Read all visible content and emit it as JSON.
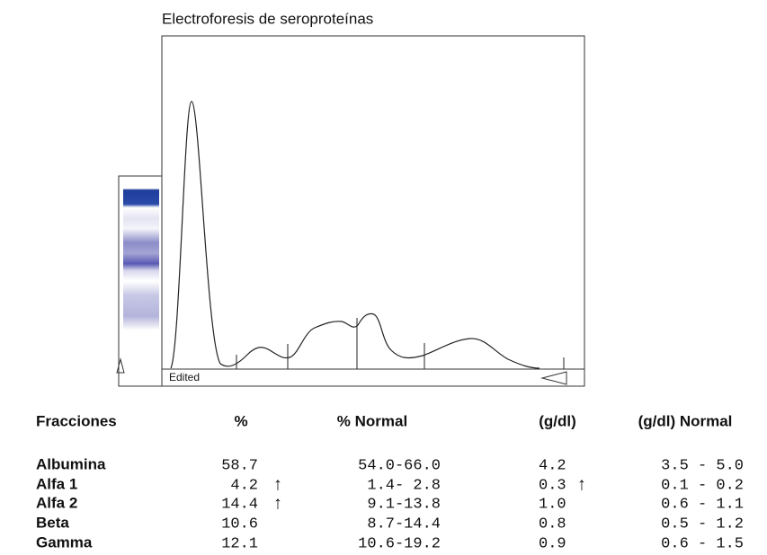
{
  "title": "Electroforesis de seroproteínas",
  "graph_label": "Edited",
  "table": {
    "headers": [
      "Fracciones",
      "%",
      "% Normal",
      "(g/dl)",
      "(g/dl) Normal"
    ],
    "rows": [
      {
        "fraction": "Albumina",
        "percent": "58.7",
        "percent_normal": "54.0-66.0",
        "gdl": "4.2",
        "gdl_normal": "3.5 - 5.0"
      },
      {
        "fraction": "Alfa 1",
        "percent": "4.2",
        "percent_flag": "↑",
        "percent_normal": "1.4- 2.8",
        "gdl": "0.3",
        "gdl_flag": "↑",
        "gdl_normal": "0.1 - 0.2"
      },
      {
        "fraction": "Alfa 2",
        "percent": "14.4",
        "percent_flag": "↑",
        "percent_normal": "9.1-13.8",
        "gdl": "1.0",
        "gdl_normal": "0.6 - 1.1"
      },
      {
        "fraction": "Beta",
        "percent": "10.6",
        "percent_normal": "8.7-14.4",
        "gdl": "0.8",
        "gdl_normal": "0.5 - 1.2"
      },
      {
        "fraction": "Gamma",
        "percent": "12.1",
        "percent_normal": "10.6-19.2",
        "gdl": "0.9",
        "gdl_normal": "0.6 - 1.5"
      }
    ]
  }
}
